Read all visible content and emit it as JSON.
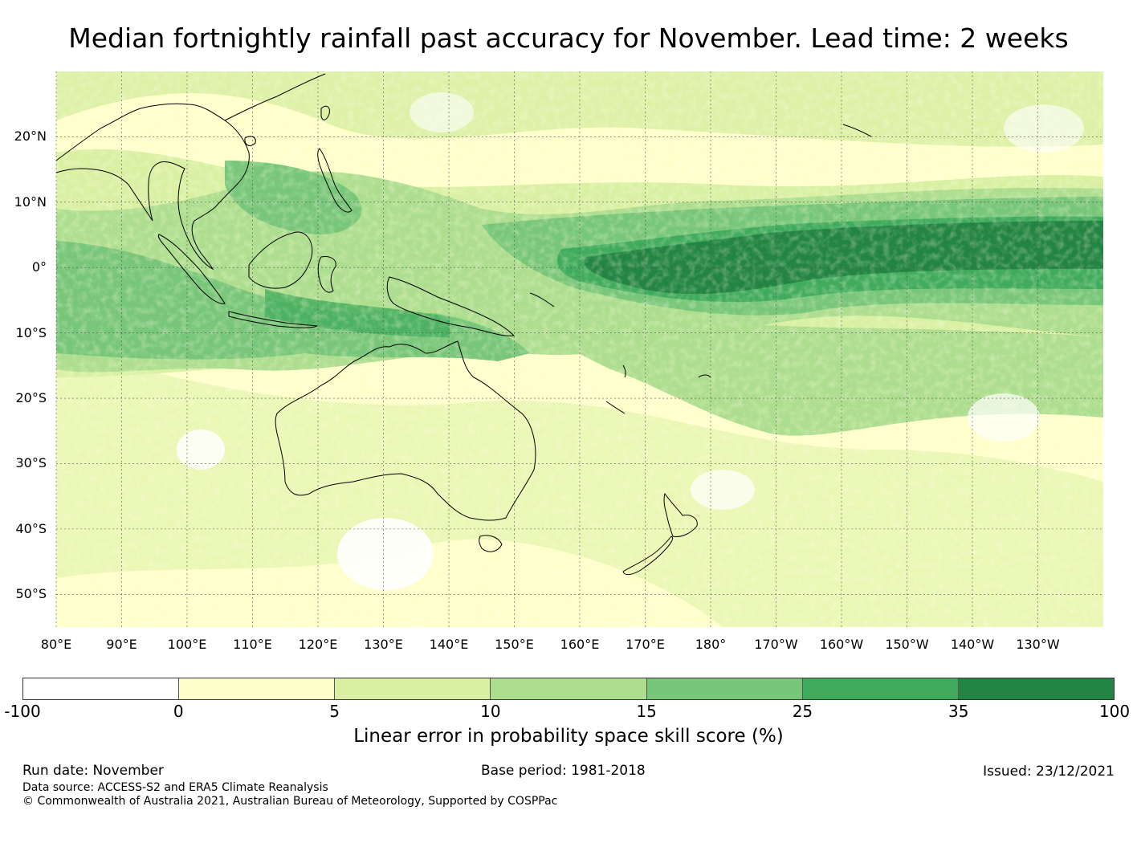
{
  "title": "Median fortnightly rainfall past accuracy for November. Lead time: 2 weeks",
  "map": {
    "lat_labels": [
      "20°N",
      "10°N",
      "0°",
      "10°S",
      "20°S",
      "30°S",
      "40°S",
      "50°S"
    ],
    "lat_values": [
      20,
      10,
      0,
      -10,
      -20,
      -30,
      -40,
      -50
    ],
    "lon_labels": [
      "80°E",
      "90°E",
      "100°E",
      "110°E",
      "120°E",
      "130°E",
      "140°E",
      "150°E",
      "160°E",
      "170°E",
      "180°",
      "170°W",
      "160°W",
      "150°W",
      "140°W",
      "130°W"
    ],
    "lon_values": [
      80,
      90,
      100,
      110,
      120,
      130,
      140,
      150,
      160,
      170,
      180,
      190,
      200,
      210,
      220,
      230
    ],
    "lon_range": [
      80,
      240
    ],
    "lat_range": [
      -55,
      30
    ]
  },
  "colorbar": {
    "ticks": [
      "-100",
      "0",
      "5",
      "10",
      "15",
      "25",
      "35",
      "100"
    ],
    "colors": [
      "#ffffff",
      "#ffffcc",
      "#d9f0a3",
      "#addd8e",
      "#78c679",
      "#41ab5d",
      "#238443"
    ],
    "label": "Linear error in probability space skill score (%)"
  },
  "footer": {
    "run_date": "Run date: November",
    "base_period": "Base period: 1981-2018",
    "issued": "Issued: 23/12/2021",
    "data_source": "Data source: ACCESS-S2 and ERA5 Climate Reanalysis",
    "copyright": "© Commonwealth of Australia 2021, Australian Bureau of Meteorology, Supported by COSPPac"
  }
}
